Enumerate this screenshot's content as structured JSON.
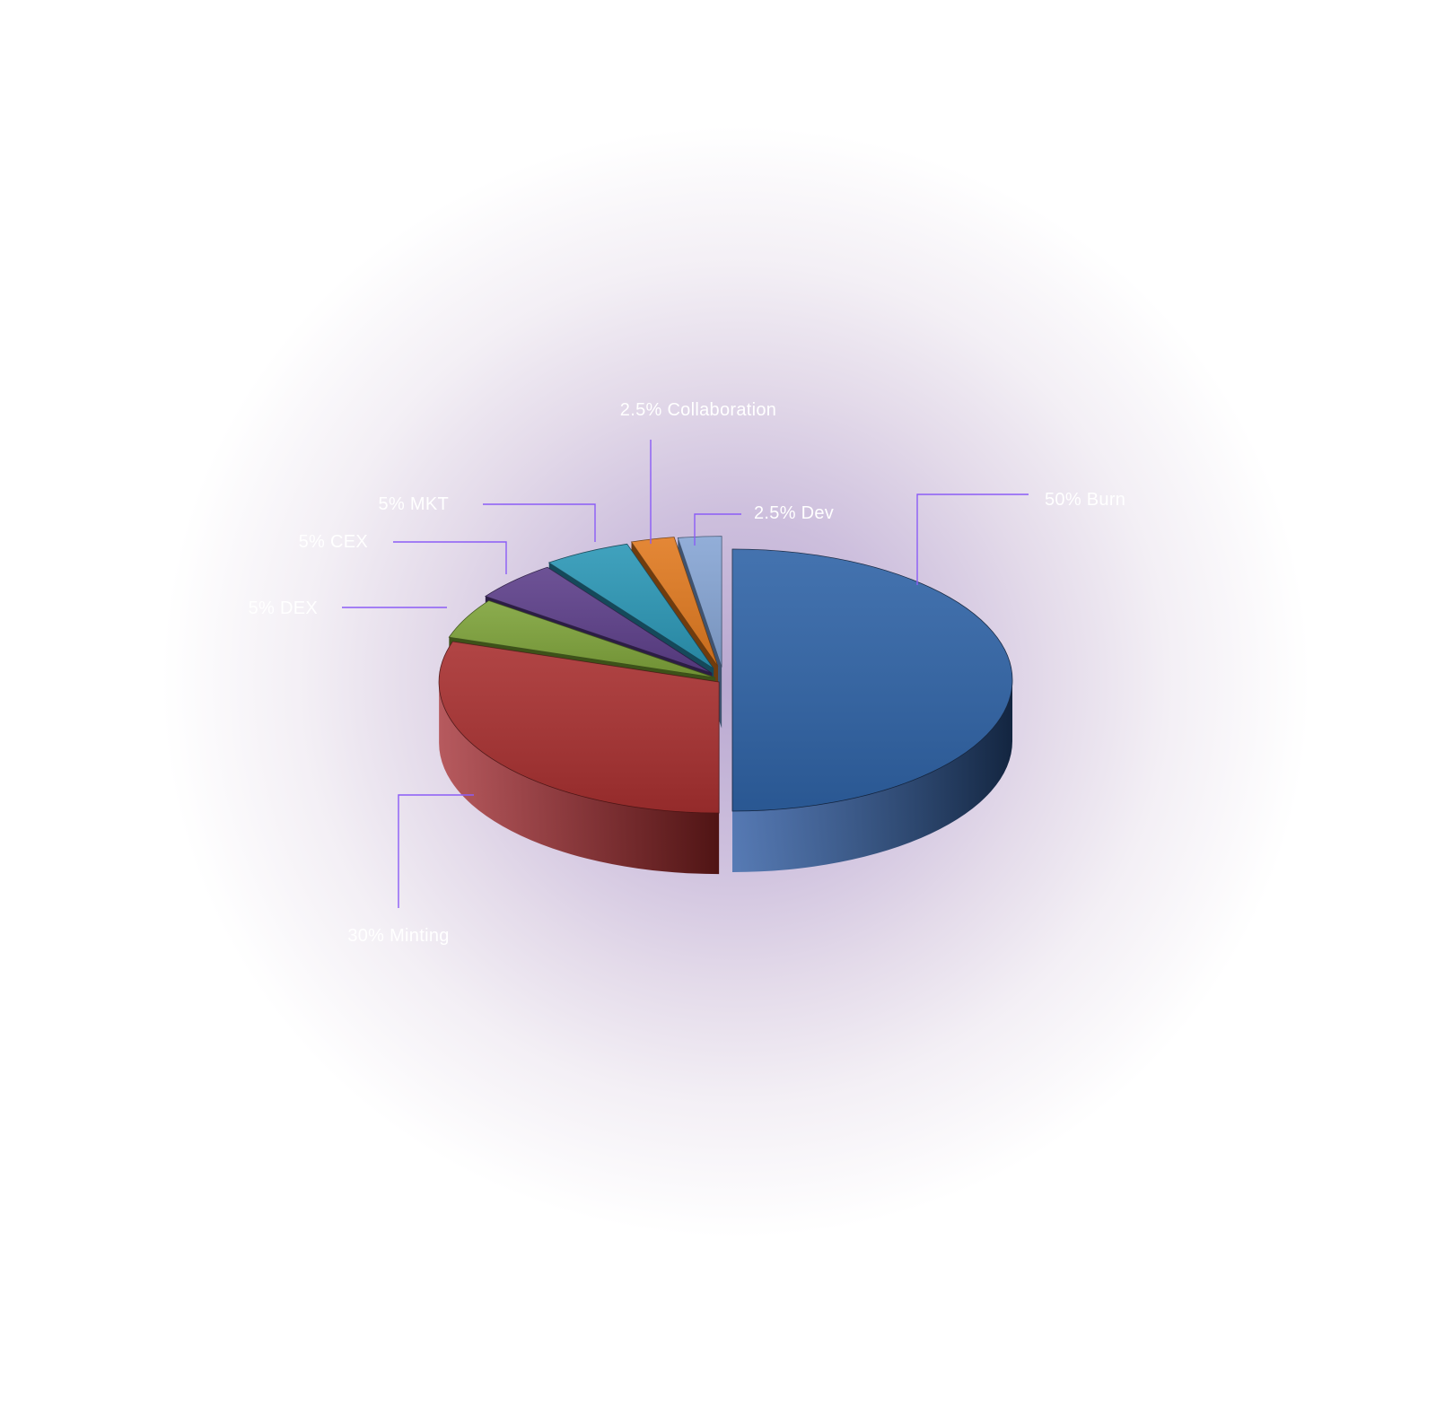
{
  "chart_data": {
    "type": "pie",
    "slices": [
      {
        "name": "Burn",
        "value": 50,
        "label": "50% Burn",
        "color": "#2f63a6",
        "dark": "#132540"
      },
      {
        "name": "Minting",
        "value": 30,
        "label": "30% Minting",
        "color": "#a83030",
        "dark": "#4f1414"
      },
      {
        "name": "DEX",
        "value": 5,
        "label": "5% DEX",
        "color": "#7ea33a",
        "dark": "#3d5219"
      },
      {
        "name": "CEX",
        "value": 5,
        "label": "5% CEX",
        "color": "#5d3f8a",
        "dark": "#2c1d45"
      },
      {
        "name": "MKT",
        "value": 5,
        "label": "5% MKT",
        "color": "#2b97b6",
        "dark": "#15495a"
      },
      {
        "name": "Collaboration",
        "value": 2.5,
        "label": "2.5% Collaboration",
        "color": "#e17a20",
        "dark": "#703c0e"
      },
      {
        "name": "Dev",
        "value": 2.5,
        "label": "2.5% Dev",
        "color": "#86a5d4",
        "dark": "#3f5370"
      }
    ]
  }
}
